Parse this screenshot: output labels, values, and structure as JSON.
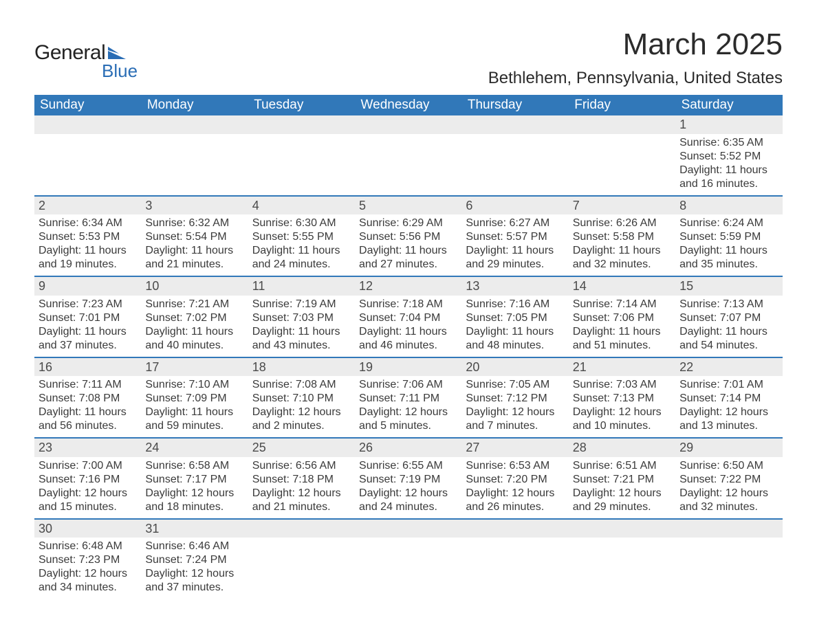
{
  "logo": {
    "main": "General",
    "sub": "Blue",
    "shape_color": "#2a6db5"
  },
  "title": "March 2025",
  "location": "Bethlehem, Pennsylvania, United States",
  "colors": {
    "header_bg": "#3178b9",
    "header_fg": "#ffffff",
    "daynum_bg": "#ececec",
    "row_border": "#3178b9",
    "text": "#3a3a3a"
  },
  "weekdays": [
    "Sunday",
    "Monday",
    "Tuesday",
    "Wednesday",
    "Thursday",
    "Friday",
    "Saturday"
  ],
  "weeks": [
    [
      null,
      null,
      null,
      null,
      null,
      null,
      {
        "n": "1",
        "sr": "6:35 AM",
        "ss": "5:52 PM",
        "dl": "11 hours and 16 minutes."
      }
    ],
    [
      {
        "n": "2",
        "sr": "6:34 AM",
        "ss": "5:53 PM",
        "dl": "11 hours and 19 minutes."
      },
      {
        "n": "3",
        "sr": "6:32 AM",
        "ss": "5:54 PM",
        "dl": "11 hours and 21 minutes."
      },
      {
        "n": "4",
        "sr": "6:30 AM",
        "ss": "5:55 PM",
        "dl": "11 hours and 24 minutes."
      },
      {
        "n": "5",
        "sr": "6:29 AM",
        "ss": "5:56 PM",
        "dl": "11 hours and 27 minutes."
      },
      {
        "n": "6",
        "sr": "6:27 AM",
        "ss": "5:57 PM",
        "dl": "11 hours and 29 minutes."
      },
      {
        "n": "7",
        "sr": "6:26 AM",
        "ss": "5:58 PM",
        "dl": "11 hours and 32 minutes."
      },
      {
        "n": "8",
        "sr": "6:24 AM",
        "ss": "5:59 PM",
        "dl": "11 hours and 35 minutes."
      }
    ],
    [
      {
        "n": "9",
        "sr": "7:23 AM",
        "ss": "7:01 PM",
        "dl": "11 hours and 37 minutes."
      },
      {
        "n": "10",
        "sr": "7:21 AM",
        "ss": "7:02 PM",
        "dl": "11 hours and 40 minutes."
      },
      {
        "n": "11",
        "sr": "7:19 AM",
        "ss": "7:03 PM",
        "dl": "11 hours and 43 minutes."
      },
      {
        "n": "12",
        "sr": "7:18 AM",
        "ss": "7:04 PM",
        "dl": "11 hours and 46 minutes."
      },
      {
        "n": "13",
        "sr": "7:16 AM",
        "ss": "7:05 PM",
        "dl": "11 hours and 48 minutes."
      },
      {
        "n": "14",
        "sr": "7:14 AM",
        "ss": "7:06 PM",
        "dl": "11 hours and 51 minutes."
      },
      {
        "n": "15",
        "sr": "7:13 AM",
        "ss": "7:07 PM",
        "dl": "11 hours and 54 minutes."
      }
    ],
    [
      {
        "n": "16",
        "sr": "7:11 AM",
        "ss": "7:08 PM",
        "dl": "11 hours and 56 minutes."
      },
      {
        "n": "17",
        "sr": "7:10 AM",
        "ss": "7:09 PM",
        "dl": "11 hours and 59 minutes."
      },
      {
        "n": "18",
        "sr": "7:08 AM",
        "ss": "7:10 PM",
        "dl": "12 hours and 2 minutes."
      },
      {
        "n": "19",
        "sr": "7:06 AM",
        "ss": "7:11 PM",
        "dl": "12 hours and 5 minutes."
      },
      {
        "n": "20",
        "sr": "7:05 AM",
        "ss": "7:12 PM",
        "dl": "12 hours and 7 minutes."
      },
      {
        "n": "21",
        "sr": "7:03 AM",
        "ss": "7:13 PM",
        "dl": "12 hours and 10 minutes."
      },
      {
        "n": "22",
        "sr": "7:01 AM",
        "ss": "7:14 PM",
        "dl": "12 hours and 13 minutes."
      }
    ],
    [
      {
        "n": "23",
        "sr": "7:00 AM",
        "ss": "7:16 PM",
        "dl": "12 hours and 15 minutes."
      },
      {
        "n": "24",
        "sr": "6:58 AM",
        "ss": "7:17 PM",
        "dl": "12 hours and 18 minutes."
      },
      {
        "n": "25",
        "sr": "6:56 AM",
        "ss": "7:18 PM",
        "dl": "12 hours and 21 minutes."
      },
      {
        "n": "26",
        "sr": "6:55 AM",
        "ss": "7:19 PM",
        "dl": "12 hours and 24 minutes."
      },
      {
        "n": "27",
        "sr": "6:53 AM",
        "ss": "7:20 PM",
        "dl": "12 hours and 26 minutes."
      },
      {
        "n": "28",
        "sr": "6:51 AM",
        "ss": "7:21 PM",
        "dl": "12 hours and 29 minutes."
      },
      {
        "n": "29",
        "sr": "6:50 AM",
        "ss": "7:22 PM",
        "dl": "12 hours and 32 minutes."
      }
    ],
    [
      {
        "n": "30",
        "sr": "6:48 AM",
        "ss": "7:23 PM",
        "dl": "12 hours and 34 minutes."
      },
      {
        "n": "31",
        "sr": "6:46 AM",
        "ss": "7:24 PM",
        "dl": "12 hours and 37 minutes."
      },
      null,
      null,
      null,
      null,
      null
    ]
  ],
  "labels": {
    "sunrise": "Sunrise: ",
    "sunset": "Sunset: ",
    "daylight": "Daylight: "
  }
}
